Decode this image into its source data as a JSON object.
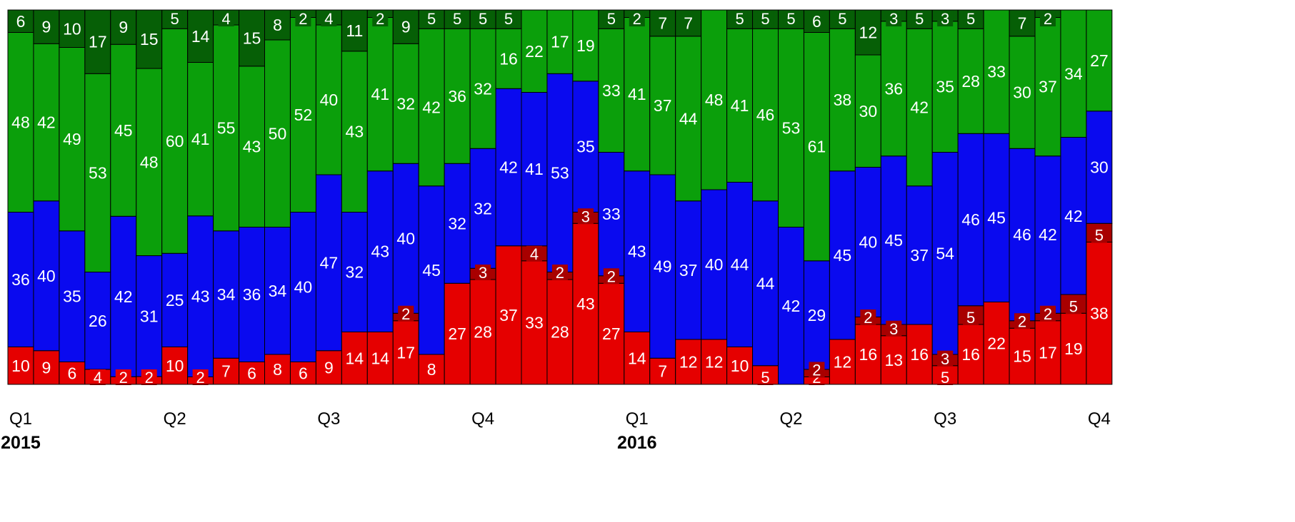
{
  "chart_data": {
    "type": "bar",
    "stacked": true,
    "normalized_100": true,
    "grid": false,
    "legend": "none",
    "colors": {
      "red": "#e50000",
      "blue": "#0a0aef",
      "green": "#0b9f0b",
      "dark_green": "#065f06",
      "dark_red": "#a80000",
      "border": "#000000",
      "label": "#ffffff",
      "axis_text": "#000000"
    },
    "x_tick_labels": [
      {
        "bar": 0,
        "text": "Q1"
      },
      {
        "bar": 6,
        "text": "Q2"
      },
      {
        "bar": 12,
        "text": "Q3"
      },
      {
        "bar": 18,
        "text": "Q4"
      },
      {
        "bar": 24,
        "text": "Q1"
      },
      {
        "bar": 30,
        "text": "Q2"
      },
      {
        "bar": 36,
        "text": "Q3"
      },
      {
        "bar": 42,
        "text": "Q4"
      }
    ],
    "year_labels": [
      {
        "bar": 0,
        "text": "2015"
      },
      {
        "bar": 24,
        "text": "2016"
      }
    ],
    "series": [
      {
        "values": [
          10,
          9,
          6,
          4,
          2,
          2,
          10,
          2,
          7,
          6,
          8,
          6,
          9,
          14,
          14,
          17,
          8,
          27,
          28,
          37,
          33,
          28,
          43,
          27,
          14,
          7,
          12,
          12,
          10,
          5,
          0,
          2,
          12,
          16,
          13,
          16,
          5,
          16,
          22,
          15,
          17,
          19,
          38
        ]
      },
      {
        "values": [
          0,
          0,
          0,
          0,
          0,
          0,
          0,
          0,
          0,
          0,
          0,
          0,
          0,
          0,
          0,
          2,
          0,
          0,
          3,
          0,
          4,
          2,
          3,
          2,
          0,
          0,
          0,
          0,
          0,
          0,
          0,
          2,
          0,
          2,
          3,
          0,
          3,
          5,
          0,
          2,
          2,
          5,
          5
        ]
      },
      {
        "values": [
          36,
          40,
          35,
          26,
          42,
          31,
          25,
          43,
          34,
          36,
          34,
          40,
          47,
          32,
          43,
          40,
          45,
          32,
          32,
          42,
          41,
          53,
          35,
          33,
          43,
          49,
          37,
          40,
          44,
          44,
          42,
          29,
          45,
          40,
          45,
          37,
          54,
          46,
          45,
          46,
          42,
          42,
          30
        ]
      },
      {
        "values": [
          48,
          42,
          49,
          53,
          45,
          48,
          60,
          41,
          55,
          43,
          50,
          52,
          40,
          43,
          41,
          32,
          42,
          36,
          32,
          16,
          22,
          17,
          19,
          33,
          41,
          37,
          44,
          48,
          41,
          46,
          53,
          61,
          38,
          30,
          36,
          42,
          35,
          28,
          33,
          30,
          37,
          34,
          27
        ]
      },
      {
        "values": [
          6,
          9,
          10,
          17,
          9,
          15,
          5,
          14,
          4,
          15,
          8,
          2,
          4,
          11,
          2,
          9,
          5,
          5,
          5,
          5,
          0,
          0,
          0,
          5,
          2,
          7,
          7,
          0,
          5,
          5,
          5,
          6,
          5,
          12,
          3,
          5,
          3,
          5,
          0,
          7,
          2,
          0,
          0
        ]
      }
    ]
  }
}
